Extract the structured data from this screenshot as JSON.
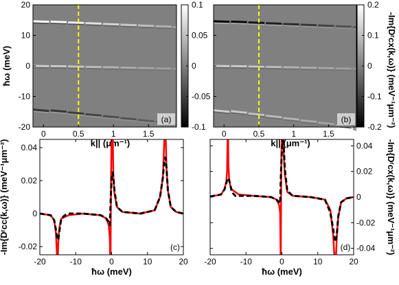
{
  "chart_data": [
    {
      "panel": "(a)",
      "type": "heatmap",
      "xlabel": "k||  (μm⁻¹)",
      "ylabel": "ħω (meV)",
      "xlim": [
        -0.15,
        1.9
      ],
      "ylim": [
        -20,
        20
      ],
      "xticks": [
        "0",
        "0.5",
        "1",
        "1.5"
      ],
      "yticks": [
        "-20",
        "-10",
        "0",
        "10",
        "20"
      ],
      "colorbar": {
        "range": [
          -0.1,
          0.1
        ],
        "ticks": [
          "0.1",
          "0.05",
          "0",
          "-0.05",
          "-0.1"
        ]
      },
      "cut_line_k": 0.5,
      "bands": [
        {
          "start": 14.6,
          "slope": -1.0,
          "value": 0.1
        },
        {
          "start": 0.0,
          "slope": -0.5,
          "value": 0.06
        },
        {
          "start": -14.3,
          "slope": -2.5,
          "value": -0.06
        }
      ]
    },
    {
      "panel": "(b)",
      "type": "heatmap",
      "xlabel": "k||  (μm⁻¹)",
      "ylabel": "-Im{Dʳcx(k,ω)} (meV⁻¹μm⁻²)",
      "xlim": [
        -0.15,
        1.9
      ],
      "ylim": [
        -20,
        20
      ],
      "xticks": [
        "0",
        "0.5",
        "1",
        "1.5"
      ],
      "colorbar": {
        "range": [
          -0.2,
          0.2
        ],
        "ticks": [
          "0.2",
          "0.1",
          "0",
          "-0.1",
          "-0.2"
        ]
      },
      "cut_line_k": 0.5,
      "bands": [
        {
          "start": 14.6,
          "slope": -1.0,
          "value": -0.2
        },
        {
          "start": 0.0,
          "slope": -0.5,
          "value": 0.12
        },
        {
          "start": -14.5,
          "slope": -3.0,
          "value": 0.12
        }
      ]
    },
    {
      "panel": "(c)",
      "type": "line",
      "xlabel": "ħω (meV)",
      "ylabel": "-Im{Dʳcc(k,ω)} (meV⁻¹μm⁻²)",
      "xlim": [
        -20,
        20
      ],
      "ylim": [
        -0.025,
        0.045
      ],
      "xticks": [
        "-20",
        "-10",
        "0",
        "10",
        "20"
      ],
      "yticks": [
        "-0.02",
        "0",
        "0.02",
        "0.04"
      ],
      "series": [
        {
          "style": "solid-red",
          "x": [
            -20,
            -17,
            -16,
            -15.5,
            -15.3,
            -15.1,
            -15.0,
            -14.9,
            -14.7,
            -14.5,
            -14,
            -12,
            -8,
            -3,
            -1.5,
            -0.8,
            -0.5,
            -0.35,
            -0.3,
            -0.25,
            -0.15,
            0,
            0.3,
            0.5,
            0.8,
            1.5,
            3,
            8,
            12,
            13.5,
            14.3,
            14.7,
            14.9,
            15.0,
            15.1,
            15.3,
            15.7,
            16.5,
            18,
            20
          ],
          "y": [
            0,
            -0.001,
            -0.004,
            -0.012,
            -0.022,
            -0.05,
            -0.05,
            -0.02,
            -0.012,
            -0.008,
            -0.003,
            -0.001,
            0,
            -0.001,
            -0.003,
            -0.007,
            -0.015,
            -0.05,
            -0.05,
            -0.01,
            0.02,
            0.05,
            0.05,
            0.022,
            0.012,
            0.004,
            0.001,
            0,
            0.002,
            0.01,
            0.022,
            0.045,
            0.05,
            0.05,
            0.045,
            0.028,
            0.014,
            0.004,
            0.001,
            0
          ]
        },
        {
          "style": "dashed-black",
          "x": [
            -20,
            -17,
            -16,
            -15.5,
            -15.2,
            -15.0,
            -14.8,
            -14.4,
            -14,
            -13,
            -12,
            -8,
            -3,
            -1.5,
            -0.8,
            -0.5,
            -0.3,
            0,
            0.3,
            0.5,
            0.8,
            1.5,
            3,
            8,
            12,
            13.5,
            14.3,
            14.7,
            15.0,
            15.3,
            15.7,
            16.5,
            18,
            20
          ],
          "y": [
            0,
            -0.001,
            -0.004,
            -0.01,
            -0.015,
            -0.016,
            -0.015,
            -0.008,
            -0.003,
            -0.001,
            0,
            0,
            -0.001,
            -0.003,
            -0.005,
            -0.007,
            0.005,
            0.022,
            0.025,
            0.022,
            0.014,
            0.004,
            0.001,
            0,
            0.002,
            0.01,
            0.022,
            0.032,
            0.034,
            0.028,
            0.014,
            0.004,
            0.001,
            0
          ]
        }
      ]
    },
    {
      "panel": "(d)",
      "type": "line",
      "xlabel": "ħω (meV)",
      "ylabel": "-Im{Dʳcx(k,ω)} (meV⁻¹μm⁻²)",
      "xlim": [
        -20,
        20
      ],
      "ylim": [
        -0.045,
        0.045
      ],
      "xticks": [
        "-20",
        "-10",
        "0",
        "10",
        "20"
      ],
      "yticks": [
        "-0.04",
        "-0.02",
        "0",
        "0.02",
        "0.04"
      ],
      "series": [
        {
          "style": "solid-red",
          "x": [
            -20,
            -17,
            -16,
            -15.5,
            -15.3,
            -15.1,
            -15.0,
            -14.9,
            -14.7,
            -14.5,
            -14,
            -12,
            -8,
            -3,
            -1.5,
            -0.8,
            -0.5,
            -0.35,
            -0.3,
            -0.25,
            -0.15,
            0,
            0.3,
            0.5,
            0.8,
            1.5,
            3,
            8,
            12,
            13.5,
            14.3,
            14.7,
            14.9,
            15.0,
            15.1,
            15.3,
            15.7,
            16.5,
            18,
            20
          ],
          "y": [
            0.0005,
            0.002,
            0.006,
            0.012,
            0.02,
            0.05,
            0.05,
            0.025,
            0.014,
            0.01,
            0.006,
            0.002,
            0.001,
            0,
            -0.002,
            -0.006,
            -0.012,
            -0.05,
            -0.05,
            -0.01,
            0.03,
            0.05,
            0.05,
            0.035,
            0.018,
            0.004,
            0.001,
            0,
            -0.002,
            -0.01,
            -0.03,
            -0.05,
            -0.05,
            -0.05,
            -0.045,
            -0.03,
            -0.016,
            -0.004,
            -0.001,
            0
          ]
        },
        {
          "style": "dashed-black",
          "x": [
            -20,
            -17,
            -16,
            -15.5,
            -15.2,
            -15.0,
            -14.8,
            -14.4,
            -14,
            -13,
            -12,
            -8,
            -3,
            -1.5,
            -0.8,
            -0.5,
            -0.3,
            0,
            0.3,
            0.5,
            0.8,
            1.5,
            3,
            8,
            12,
            13.5,
            14.3,
            14.7,
            15.0,
            15.3,
            15.7,
            16.5,
            18,
            20
          ],
          "y": [
            0.0005,
            0.002,
            0.006,
            0.011,
            0.014,
            0.015,
            0.014,
            0.01,
            0.004,
            0.001,
            0.001,
            0.001,
            0,
            -0.002,
            -0.004,
            -0.005,
            0.015,
            0.038,
            0.044,
            0.04,
            0.022,
            0.005,
            0.001,
            0,
            -0.002,
            -0.012,
            -0.025,
            -0.033,
            -0.035,
            -0.03,
            -0.015,
            -0.004,
            -0.001,
            0
          ]
        }
      ]
    }
  ]
}
